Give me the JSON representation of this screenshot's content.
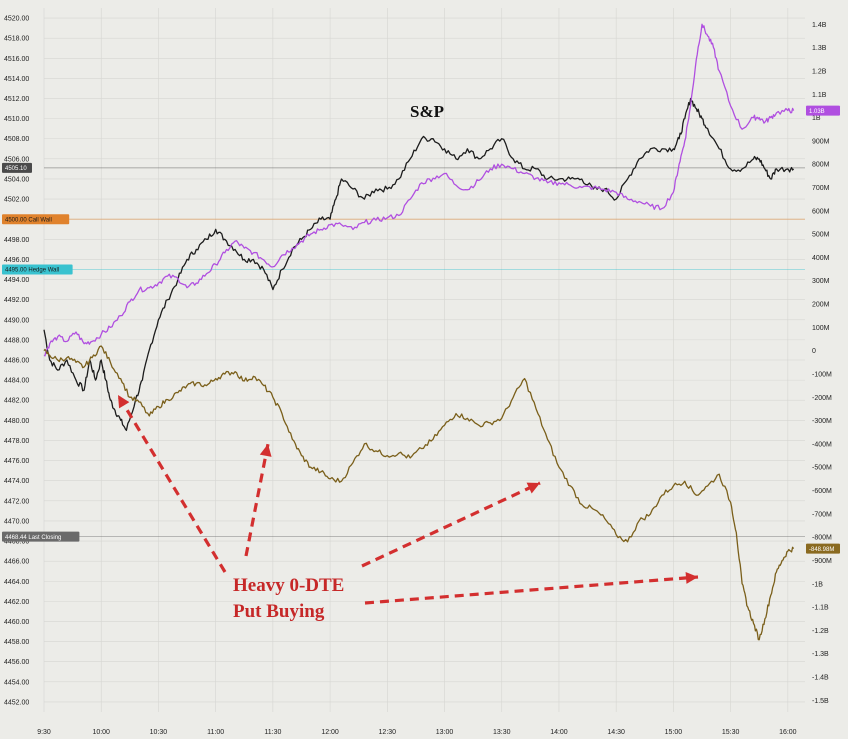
{
  "chart_data": {
    "type": "line",
    "title": "S&P",
    "x_ticks": [
      "9:30",
      "10:00",
      "10:30",
      "11:00",
      "11:30",
      "12:00",
      "12:30",
      "13:00",
      "13:30",
      "14:00",
      "14:30",
      "15:00",
      "15:30",
      "16:00"
    ],
    "left_axis": {
      "ticks": [
        "4520.00",
        "4518.00",
        "4516.00",
        "4514.00",
        "4512.00",
        "4510.00",
        "4508.00",
        "4506.00",
        "4504.00",
        "4502.00",
        "4500.00",
        "4498.00",
        "4496.00",
        "4494.00",
        "4492.00",
        "4490.00",
        "4488.00",
        "4486.00",
        "4484.00",
        "4482.00",
        "4480.00",
        "4478.00",
        "4476.00",
        "4474.00",
        "4472.00",
        "4470.00",
        "4468.00",
        "4466.00",
        "4464.00",
        "4462.00",
        "4460.00",
        "4458.00",
        "4456.00",
        "4454.00",
        "4452.00"
      ],
      "range": [
        4451,
        4521
      ]
    },
    "right_axis": {
      "ticks": [
        "1.4B",
        "1.3B",
        "1.2B",
        "1.1B",
        "1B",
        "900M",
        "800M",
        "700M",
        "600M",
        "500M",
        "400M",
        "300M",
        "200M",
        "100M",
        "0",
        "-100M",
        "-200M",
        "-300M",
        "-400M",
        "-500M",
        "-600M",
        "-700M",
        "-800M",
        "-900M",
        "-1B",
        "-1.1B",
        "-1.2B",
        "-1.3B",
        "-1.4B",
        "-1.5B"
      ],
      "range_millions": [
        -1550,
        1470
      ]
    },
    "levels": [
      {
        "tag": "4505.10",
        "color": "#4a4a4a",
        "text_color": "#ffffff",
        "axis": "left",
        "value": 4505.1
      },
      {
        "tag": "4500.00  Call Wall",
        "color": "#e0822c",
        "text_color": "#1a1a1a",
        "axis": "left",
        "value": 4500.0
      },
      {
        "tag": "4495.00  Hedge Wall",
        "color": "#39c2cf",
        "text_color": "#1a1a1a",
        "axis": "left",
        "value": 4495.0
      },
      {
        "tag": "4468.44  Last Closing",
        "color": "#6a6a6a",
        "text_color": "#ffffff",
        "axis": "left",
        "value": 4468.44
      }
    ],
    "right_tags": [
      {
        "tag": "1.03B",
        "color": "#b04fe0",
        "text_color": "#ffffff",
        "value_millions": 1030
      },
      {
        "tag": "-848.98M",
        "color": "#8a6a20",
        "text_color": "#ffffff",
        "value_millions": -848.98
      }
    ],
    "series": [
      {
        "axis": "left",
        "color": "#1c1c1c",
        "x": [
          9.5,
          9.55,
          9.62,
          9.7,
          9.78,
          9.85,
          9.9,
          9.95,
          10.0,
          10.04,
          10.08,
          10.12,
          10.17,
          10.22,
          10.3,
          10.36,
          10.42,
          10.5,
          10.58,
          10.67,
          10.75,
          10.83,
          10.92,
          11.0,
          11.08,
          11.17,
          11.25,
          11.33,
          11.42,
          11.5,
          11.58,
          11.67,
          11.75,
          11.83,
          11.92,
          12.0,
          12.05,
          12.1,
          12.2,
          12.3,
          12.4,
          12.5,
          12.6,
          12.7,
          12.8,
          12.9,
          13.0,
          13.1,
          13.2,
          13.3,
          13.4,
          13.5,
          13.6,
          13.7,
          13.8,
          13.9,
          14.0,
          14.1,
          14.2,
          14.3,
          14.4,
          14.5,
          14.6,
          14.7,
          14.8,
          14.9,
          15.0,
          15.05,
          15.1,
          15.15,
          15.2,
          15.25,
          15.3,
          15.4,
          15.5,
          15.6,
          15.7,
          15.75,
          15.8,
          15.85,
          15.9,
          16.0,
          16.05
        ],
        "y": [
          4489,
          4486,
          4485,
          4486,
          4484,
          4483,
          4486,
          4484,
          4486,
          4484,
          4482,
          4481,
          4480,
          4479,
          4482,
          4484,
          4487,
          4490,
          4492,
          4494,
          4496,
          4497,
          4498,
          4499,
          4498,
          4497,
          4496,
          4496,
          4495,
          4493,
          4495,
          4497,
          4498,
          4499,
          4500,
          4500,
          4502,
          4504,
          4503,
          4502,
          4503,
          4503,
          4504,
          4506,
          4508,
          4508,
          4507,
          4506,
          4507,
          4506,
          4507,
          4508,
          4506,
          4505,
          4505,
          4504,
          4504,
          4504,
          4504,
          4503,
          4503,
          4502,
          4504,
          4506,
          4507,
          4507,
          4507,
          4508,
          4510,
          4512,
          4511,
          4510,
          4509,
          4507,
          4505,
          4505,
          4506,
          4506,
          4505,
          4504,
          4505,
          4505,
          4505
        ]
      },
      {
        "axis": "right",
        "color": "#b04fe0",
        "x": [
          9.5,
          9.55,
          9.62,
          9.7,
          9.78,
          9.85,
          9.92,
          10.0,
          10.08,
          10.17,
          10.25,
          10.33,
          10.42,
          10.5,
          10.58,
          10.67,
          10.75,
          10.83,
          10.92,
          11.0,
          11.08,
          11.17,
          11.25,
          11.33,
          11.42,
          11.5,
          11.58,
          11.67,
          11.75,
          11.83,
          11.92,
          12.0,
          12.1,
          12.2,
          12.3,
          12.4,
          12.5,
          12.6,
          12.7,
          12.8,
          12.9,
          13.0,
          13.1,
          13.2,
          13.3,
          13.4,
          13.5,
          13.6,
          13.7,
          13.8,
          13.9,
          14.0,
          14.1,
          14.2,
          14.3,
          14.4,
          14.5,
          14.6,
          14.7,
          14.8,
          14.9,
          15.0,
          15.05,
          15.1,
          15.15,
          15.2,
          15.25,
          15.3,
          15.35,
          15.4,
          15.5,
          15.6,
          15.7,
          15.75,
          15.8,
          15.85,
          15.9,
          16.0,
          16.05
        ],
        "y": [
          -20,
          30,
          60,
          40,
          80,
          30,
          40,
          70,
          100,
          150,
          210,
          260,
          270,
          290,
          320,
          310,
          270,
          290,
          330,
          370,
          420,
          470,
          440,
          420,
          390,
          360,
          410,
          440,
          470,
          500,
          520,
          540,
          540,
          520,
          550,
          560,
          570,
          580,
          650,
          720,
          740,
          760,
          710,
          690,
          730,
          780,
          800,
          780,
          760,
          740,
          720,
          720,
          710,
          700,
          700,
          690,
          680,
          650,
          640,
          620,
          610,
          680,
          800,
          900,
          1050,
          1250,
          1400,
          1350,
          1300,
          1200,
          1050,
          950,
          1000,
          1000,
          980,
          1000,
          1020,
          1030,
          1030
        ]
      },
      {
        "axis": "right",
        "color": "#7a5f1a",
        "x": [
          9.5,
          9.55,
          9.62,
          9.7,
          9.78,
          9.85,
          9.92,
          10.0,
          10.08,
          10.17,
          10.25,
          10.33,
          10.42,
          10.5,
          10.58,
          10.67,
          10.75,
          10.83,
          10.92,
          11.0,
          11.08,
          11.17,
          11.25,
          11.33,
          11.42,
          11.5,
          11.58,
          11.67,
          11.75,
          11.83,
          11.92,
          12.0,
          12.1,
          12.2,
          12.3,
          12.4,
          12.5,
          12.6,
          12.7,
          12.8,
          12.9,
          13.0,
          13.1,
          13.2,
          13.3,
          13.4,
          13.5,
          13.6,
          13.7,
          13.8,
          13.9,
          14.0,
          14.1,
          14.2,
          14.3,
          14.4,
          14.5,
          14.6,
          14.7,
          14.8,
          14.9,
          15.0,
          15.1,
          15.2,
          15.3,
          15.4,
          15.5,
          15.55,
          15.6,
          15.65,
          15.7,
          15.75,
          15.8,
          15.85,
          15.9,
          15.95,
          16.0,
          16.05
        ],
        "y": [
          0,
          -20,
          -40,
          -30,
          -50,
          -70,
          -30,
          20,
          -50,
          -120,
          -200,
          -220,
          -280,
          -240,
          -210,
          -180,
          -150,
          -140,
          -150,
          -120,
          -100,
          -90,
          -130,
          -110,
          -150,
          -200,
          -270,
          -380,
          -450,
          -500,
          -520,
          -550,
          -560,
          -480,
          -400,
          -430,
          -450,
          -440,
          -460,
          -420,
          -380,
          -320,
          -270,
          -290,
          -320,
          -310,
          -290,
          -200,
          -120,
          -250,
          -380,
          -500,
          -580,
          -660,
          -680,
          -720,
          -790,
          -820,
          -730,
          -700,
          -620,
          -580,
          -560,
          -620,
          -580,
          -530,
          -650,
          -780,
          -1000,
          -1100,
          -1170,
          -1240,
          -1150,
          -1050,
          -950,
          -900,
          -860,
          -849
        ]
      }
    ],
    "annotations": {
      "sp_label": "S&P",
      "callout_line1": "Heavy 0-DTE",
      "callout_line2": "Put Buying"
    }
  }
}
